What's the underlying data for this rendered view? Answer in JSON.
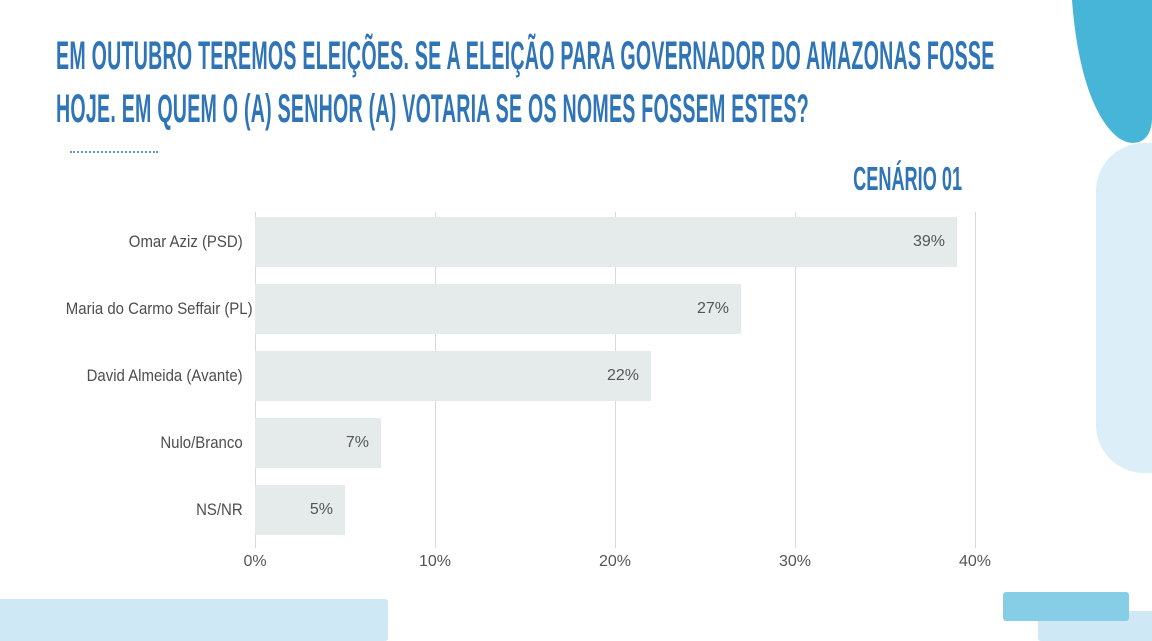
{
  "title": "EM OUTUBRO TEREMOS ELEIÇÕES. SE A ELEIÇÃO PARA GOVERNADOR DO AMAZONAS FOSSE HOJE. EM QUEM O (A) SENHOR (A) VOTARIA SE OS NOMES FOSSEM ESTES?",
  "scenario_label": "CENÁRIO 01",
  "chart_data": {
    "type": "bar",
    "orientation": "horizontal",
    "title": "CENÁRIO 01",
    "categories": [
      "Omar Aziz (PSD)",
      "Maria do Carmo Seffair (PL)",
      "David Almeida (Avante)",
      "Nulo/Branco",
      "NS/NR"
    ],
    "values": [
      39,
      27,
      22,
      7,
      5
    ],
    "value_suffix": "%",
    "x_ticks": [
      0,
      10,
      20,
      30,
      40
    ],
    "x_tick_labels": [
      "0%",
      "10%",
      "20%",
      "30%",
      "40%"
    ],
    "xlim": [
      0,
      40
    ],
    "grid": true,
    "legend": false
  },
  "colors": {
    "title_blue": "#2e74b6",
    "bar_fill": "#e5eaea",
    "gridline": "#d9d9d9",
    "axis_text": "#555555",
    "accent_teal": "#47b5d7",
    "pale_blue": "#dceff8",
    "light_blue": "#cfe8f6",
    "mid_blue": "#86cde6"
  }
}
